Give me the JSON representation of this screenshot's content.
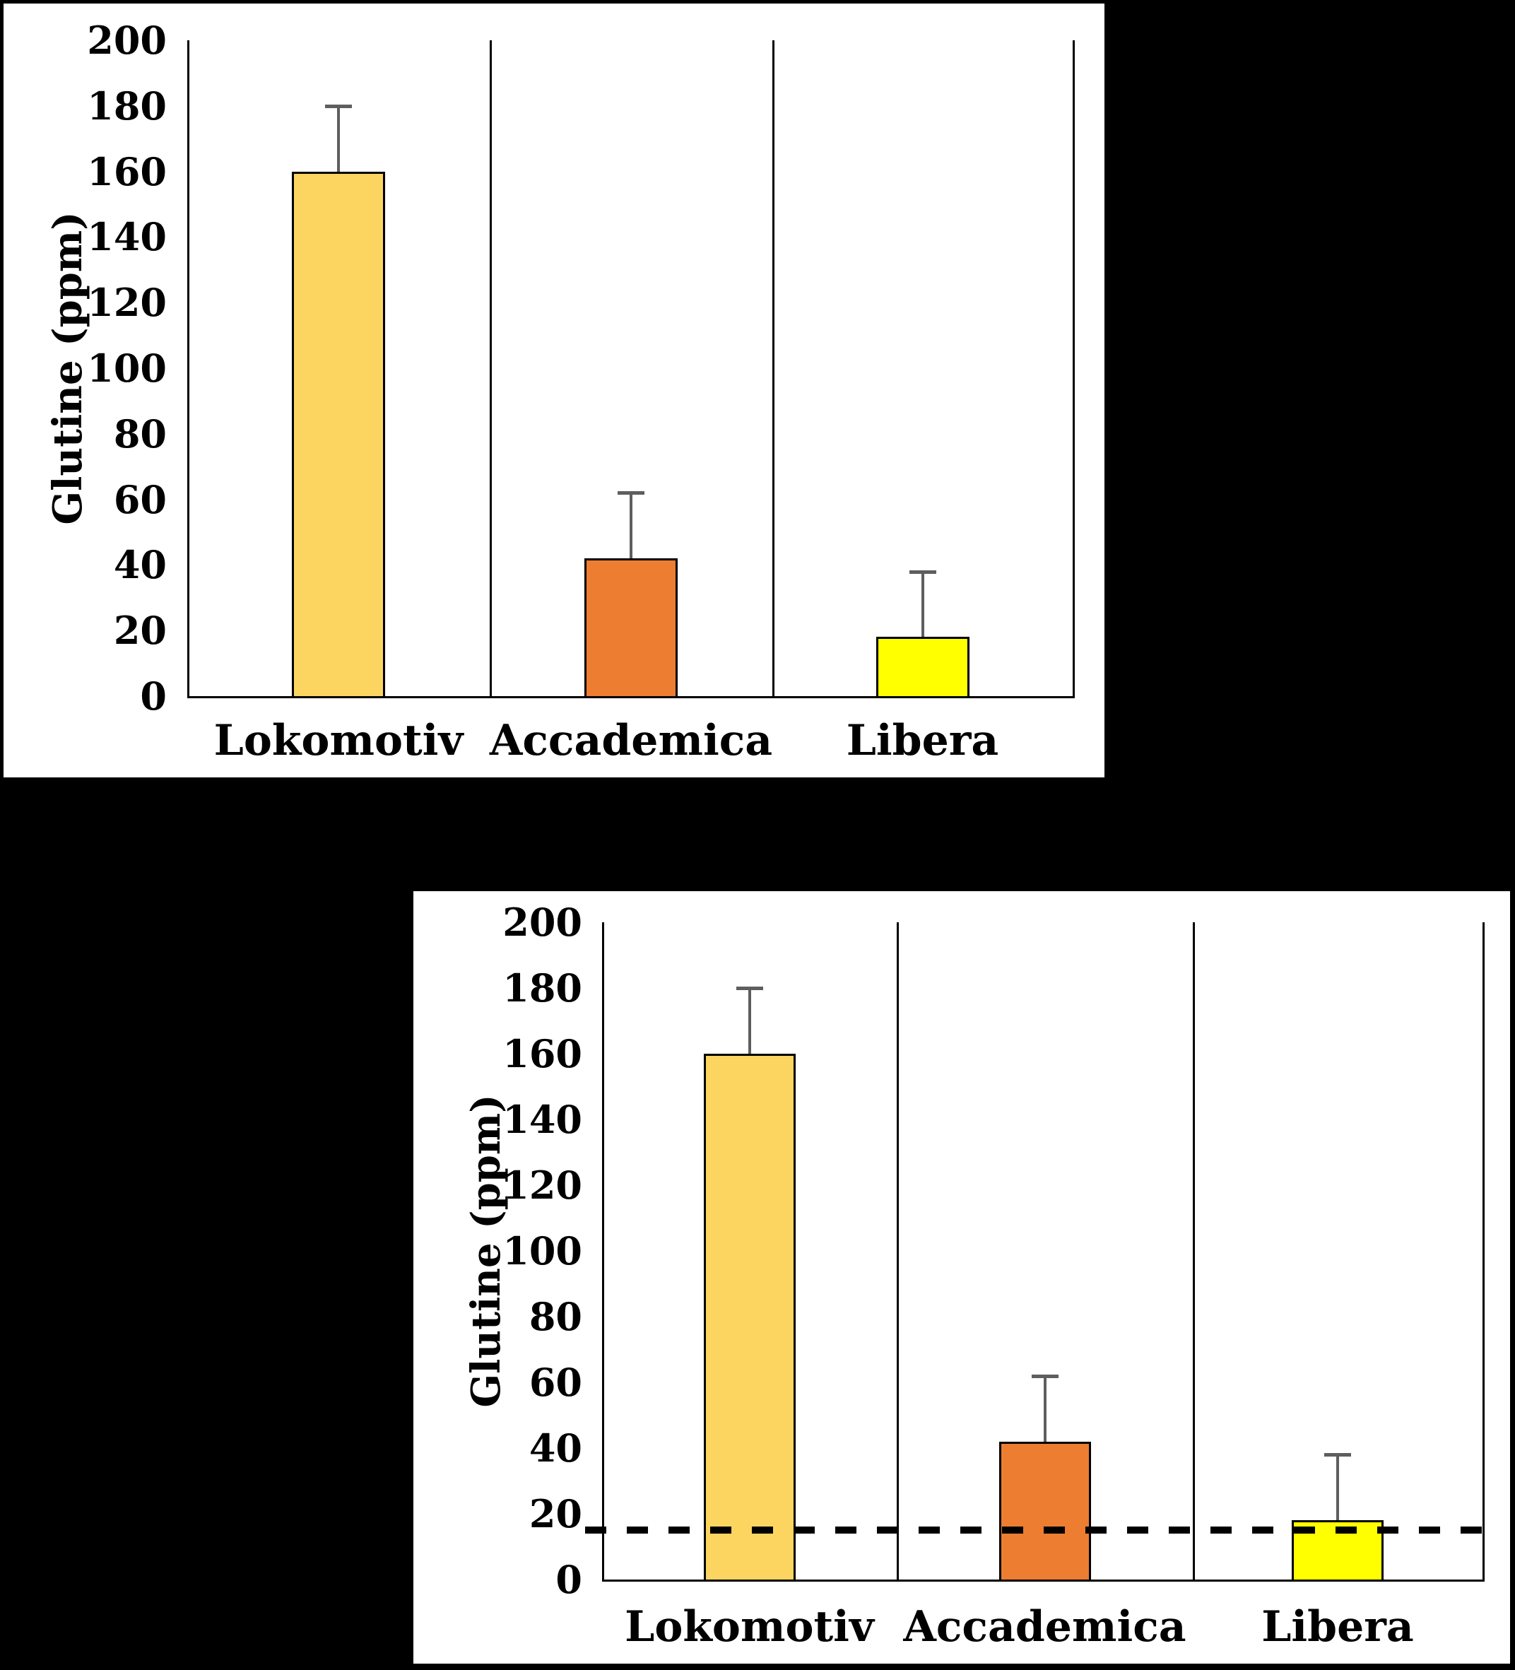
{
  "figure": {
    "background_color": "#000000",
    "panel_color": "#FFFFFF"
  },
  "chart_data": [
    {
      "type": "bar",
      "title": "",
      "ylabel": "Glutine (ppm)",
      "xlabel": "",
      "categories": [
        "Lokomotiv",
        "Accademica",
        "Libera"
      ],
      "values": [
        160,
        42,
        18
      ],
      "error_plus": [
        20,
        20,
        20
      ],
      "ylim": [
        0,
        200
      ],
      "ytick_step": 20,
      "ytick_labels": [
        "0",
        "20",
        "40",
        "60",
        "80",
        "100",
        "120",
        "140",
        "160",
        "180",
        "200"
      ],
      "bar_colors": [
        "#FCD561",
        "#ED7D31",
        "#FFFF00"
      ],
      "bar_border_color": "#000000",
      "error_bar_color": "#5E5E5E",
      "grid": false,
      "legend": null,
      "threshold_line": null
    },
    {
      "type": "bar",
      "title": "",
      "ylabel": "Glutine (ppm)",
      "xlabel": "",
      "categories": [
        "Lokomotiv",
        "Accademica",
        "Libera"
      ],
      "values": [
        160,
        42,
        18
      ],
      "error_plus": [
        20,
        20,
        20
      ],
      "ylim": [
        0,
        200
      ],
      "ytick_step": 20,
      "ytick_labels": [
        "0",
        "20",
        "40",
        "60",
        "80",
        "100",
        "120",
        "140",
        "160",
        "180",
        "200"
      ],
      "bar_colors": [
        "#FCD561",
        "#ED7D31",
        "#FFFF00"
      ],
      "bar_border_color": "#000000",
      "error_bar_color": "#5E5E5E",
      "grid": false,
      "legend": null,
      "threshold_line": {
        "value": 15,
        "style": "dashed",
        "color": "#000000"
      }
    }
  ]
}
